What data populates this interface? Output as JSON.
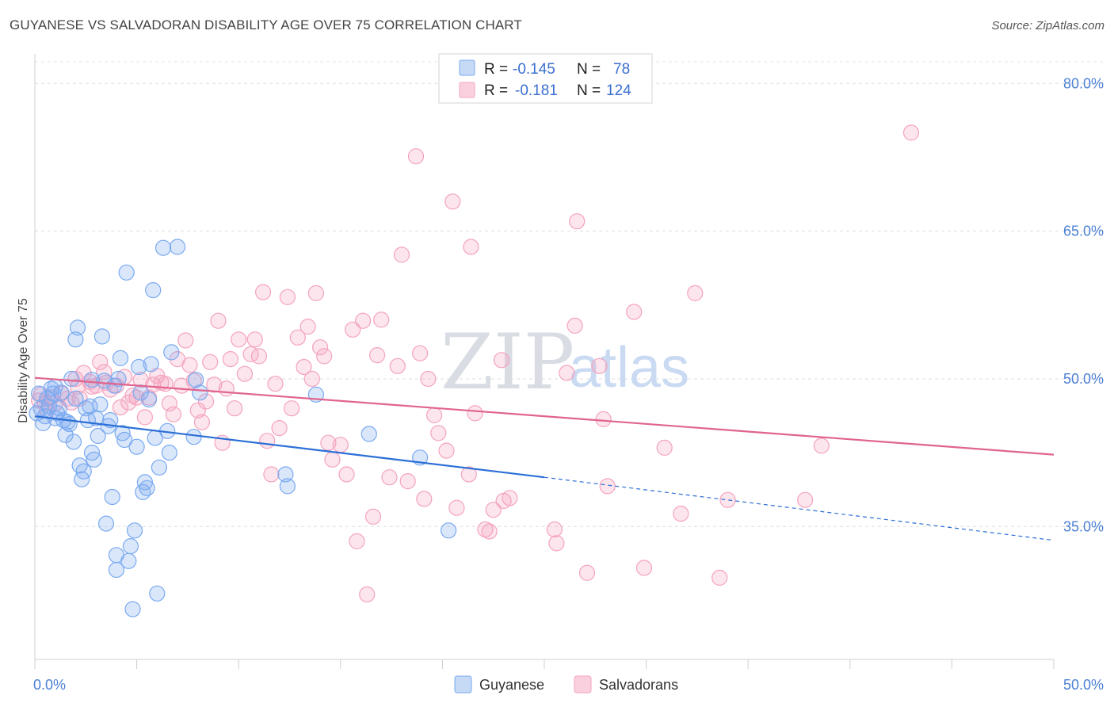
{
  "title": "GUYANESE VS SALVADORAN DISABILITY AGE OVER 75 CORRELATION CHART",
  "source": "Source: ZipAtlas.com",
  "watermark": {
    "zip": "ZIP",
    "atlas": "atlas"
  },
  "legend": {
    "rows": [
      {
        "r_label": "R =",
        "r_value": "-0.145",
        "n_label": "N =",
        "n_value": "78",
        "color": "#7aaaf0"
      },
      {
        "r_label": "R =",
        "r_value": "-0.181",
        "n_label": "N =",
        "n_value": "124",
        "color": "#f4a3be"
      }
    ]
  },
  "bottom_legend": [
    "Guyanese",
    "Salvadorans"
  ],
  "chart_data": {
    "type": "scatter",
    "title": "GUYANESE VS SALVADORAN DISABILITY AGE OVER 75 CORRELATION CHART",
    "xlabel": "",
    "ylabel": "Disability Age Over 75",
    "xlim": [
      0,
      50
    ],
    "ylim": [
      21.5,
      83
    ],
    "x_tick_labels": [
      "0.0%",
      "50.0%"
    ],
    "y_ticks": [
      35,
      50,
      65,
      80
    ],
    "y_tick_labels": [
      "35.0%",
      "50.0%",
      "65.0%",
      "80.0%"
    ],
    "grid": true,
    "legend_position": "top-center",
    "series": [
      {
        "name": "Guyanese",
        "color": "#7aaaf0",
        "line_color": "#2b6fd6",
        "trend": {
          "x0": 0,
          "y0": 46.2,
          "x1": 25,
          "y1": 40.0,
          "x_dashed_end": 50,
          "y_dashed_end": 33.6
        },
        "points": [
          [
            0.1,
            46.5
          ],
          [
            0.2,
            48.5
          ],
          [
            0.3,
            47.0
          ],
          [
            0.4,
            45.5
          ],
          [
            0.5,
            46.2
          ],
          [
            0.6,
            48.0
          ],
          [
            0.7,
            47.2
          ],
          [
            0.8,
            49.0
          ],
          [
            0.9,
            48.5
          ],
          [
            1.0,
            46.0
          ],
          [
            1.0,
            49.2
          ],
          [
            1.1,
            46.5
          ],
          [
            1.2,
            47.0
          ],
          [
            1.3,
            48.6
          ],
          [
            1.4,
            45.8
          ],
          [
            1.5,
            44.3
          ],
          [
            1.6,
            45.6
          ],
          [
            1.7,
            45.4
          ],
          [
            1.8,
            50.0
          ],
          [
            1.9,
            43.6
          ],
          [
            2.0,
            48.0
          ],
          [
            2.0,
            54.0
          ],
          [
            2.1,
            55.2
          ],
          [
            2.2,
            41.2
          ],
          [
            2.3,
            39.8
          ],
          [
            2.4,
            40.6
          ],
          [
            2.5,
            47.0
          ],
          [
            2.6,
            45.8
          ],
          [
            2.7,
            47.2
          ],
          [
            2.8,
            49.9
          ],
          [
            2.8,
            42.5
          ],
          [
            2.9,
            41.8
          ],
          [
            3.0,
            46.0
          ],
          [
            3.1,
            44.2
          ],
          [
            3.2,
            47.4
          ],
          [
            3.3,
            54.3
          ],
          [
            3.4,
            49.8
          ],
          [
            3.5,
            35.3
          ],
          [
            3.6,
            45.2
          ],
          [
            3.7,
            45.8
          ],
          [
            3.8,
            38.0
          ],
          [
            3.9,
            49.3
          ],
          [
            4.0,
            32.1
          ],
          [
            4.0,
            30.6
          ],
          [
            4.1,
            50.0
          ],
          [
            4.2,
            52.1
          ],
          [
            4.3,
            44.5
          ],
          [
            4.4,
            43.8
          ],
          [
            4.5,
            60.8
          ],
          [
            4.6,
            31.5
          ],
          [
            4.7,
            33.0
          ],
          [
            4.8,
            26.6
          ],
          [
            4.9,
            34.6
          ],
          [
            5.0,
            43.1
          ],
          [
            5.1,
            51.2
          ],
          [
            5.2,
            48.6
          ],
          [
            5.3,
            38.5
          ],
          [
            5.4,
            39.5
          ],
          [
            5.5,
            38.9
          ],
          [
            5.6,
            47.9
          ],
          [
            5.7,
            51.5
          ],
          [
            5.8,
            59.0
          ],
          [
            5.9,
            44.0
          ],
          [
            6.0,
            28.2
          ],
          [
            6.1,
            41.0
          ],
          [
            6.3,
            63.3
          ],
          [
            6.5,
            44.7
          ],
          [
            6.6,
            42.5
          ],
          [
            6.7,
            52.7
          ],
          [
            7.0,
            63.4
          ],
          [
            7.8,
            44.1
          ],
          [
            7.9,
            49.9
          ],
          [
            8.1,
            48.6
          ],
          [
            12.3,
            40.3
          ],
          [
            12.4,
            39.1
          ],
          [
            13.8,
            48.4
          ],
          [
            16.4,
            44.4
          ],
          [
            18.9,
            42.0
          ],
          [
            20.3,
            34.6
          ]
        ]
      },
      {
        "name": "Salvadorans",
        "color": "#f4a3be",
        "line_color": "#e0648e",
        "trend": {
          "x0": 0,
          "y0": 50.1,
          "x1": 50,
          "y1": 42.3
        },
        "points": [
          [
            0.2,
            47.8
          ],
          [
            0.3,
            48.4
          ],
          [
            0.5,
            47.5
          ],
          [
            0.6,
            46.8
          ],
          [
            0.8,
            48.1
          ],
          [
            1.0,
            47.5
          ],
          [
            1.3,
            48.5
          ],
          [
            1.6,
            48.0
          ],
          [
            1.8,
            47.6
          ],
          [
            2.0,
            50.0
          ],
          [
            2.1,
            49.2
          ],
          [
            2.2,
            48.0
          ],
          [
            2.4,
            50.6
          ],
          [
            2.7,
            49.7
          ],
          [
            2.8,
            49.2
          ],
          [
            3.0,
            49.3
          ],
          [
            3.2,
            51.7
          ],
          [
            3.4,
            50.7
          ],
          [
            3.5,
            49.6
          ],
          [
            3.7,
            48.9
          ],
          [
            4.0,
            49.3
          ],
          [
            4.2,
            47.1
          ],
          [
            4.4,
            50.2
          ],
          [
            4.6,
            47.6
          ],
          [
            4.8,
            48.3
          ],
          [
            5.0,
            48.1
          ],
          [
            5.2,
            49.9
          ],
          [
            5.4,
            46.1
          ],
          [
            5.6,
            48.1
          ],
          [
            5.8,
            49.4
          ],
          [
            6.0,
            50.3
          ],
          [
            6.2,
            49.6
          ],
          [
            6.4,
            49.5
          ],
          [
            6.6,
            47.5
          ],
          [
            6.8,
            46.4
          ],
          [
            7.0,
            52.0
          ],
          [
            7.2,
            49.3
          ],
          [
            7.4,
            53.9
          ],
          [
            7.6,
            51.4
          ],
          [
            7.8,
            49.8
          ],
          [
            8.0,
            46.8
          ],
          [
            8.2,
            45.6
          ],
          [
            8.4,
            47.7
          ],
          [
            8.6,
            51.7
          ],
          [
            8.8,
            49.4
          ],
          [
            9.0,
            55.9
          ],
          [
            9.2,
            43.5
          ],
          [
            9.4,
            49.0
          ],
          [
            9.6,
            52.0
          ],
          [
            9.8,
            47.0
          ],
          [
            10.0,
            54.0
          ],
          [
            10.3,
            50.5
          ],
          [
            10.6,
            52.5
          ],
          [
            10.8,
            54.0
          ],
          [
            11.0,
            52.3
          ],
          [
            11.2,
            58.8
          ],
          [
            11.4,
            43.7
          ],
          [
            11.6,
            40.3
          ],
          [
            11.8,
            49.5
          ],
          [
            12.0,
            45.0
          ],
          [
            12.4,
            58.3
          ],
          [
            12.6,
            47.0
          ],
          [
            12.9,
            54.2
          ],
          [
            13.2,
            51.2
          ],
          [
            13.4,
            55.3
          ],
          [
            13.6,
            50.0
          ],
          [
            13.8,
            58.7
          ],
          [
            14.0,
            53.2
          ],
          [
            14.2,
            52.3
          ],
          [
            14.4,
            43.5
          ],
          [
            14.6,
            41.8
          ],
          [
            15.0,
            43.3
          ],
          [
            15.3,
            40.3
          ],
          [
            15.6,
            55.0
          ],
          [
            15.8,
            33.5
          ],
          [
            16.1,
            55.9
          ],
          [
            16.3,
            28.1
          ],
          [
            16.6,
            36.0
          ],
          [
            16.8,
            52.4
          ],
          [
            17.0,
            56.0
          ],
          [
            17.4,
            40.0
          ],
          [
            17.8,
            51.3
          ],
          [
            18.0,
            62.6
          ],
          [
            18.3,
            39.6
          ],
          [
            18.7,
            72.6
          ],
          [
            18.9,
            52.6
          ],
          [
            19.1,
            37.8
          ],
          [
            19.3,
            50.0
          ],
          [
            19.6,
            46.3
          ],
          [
            19.8,
            44.5
          ],
          [
            20.2,
            42.7
          ],
          [
            20.5,
            68.0
          ],
          [
            20.7,
            36.9
          ],
          [
            21.3,
            40.3
          ],
          [
            21.4,
            63.4
          ],
          [
            21.6,
            46.5
          ],
          [
            22.1,
            34.7
          ],
          [
            22.3,
            34.5
          ],
          [
            22.5,
            36.7
          ],
          [
            22.9,
            51.9
          ],
          [
            23.0,
            37.6
          ],
          [
            23.3,
            37.9
          ],
          [
            25.5,
            34.7
          ],
          [
            25.6,
            33.3
          ],
          [
            26.1,
            50.6
          ],
          [
            26.5,
            55.4
          ],
          [
            26.6,
            66.0
          ],
          [
            27.1,
            30.3
          ],
          [
            27.7,
            51.3
          ],
          [
            27.9,
            45.9
          ],
          [
            28.1,
            39.1
          ],
          [
            29.4,
            56.8
          ],
          [
            29.9,
            30.8
          ],
          [
            30.9,
            43.0
          ],
          [
            31.7,
            36.3
          ],
          [
            32.4,
            58.7
          ],
          [
            33.6,
            29.8
          ],
          [
            34.0,
            37.7
          ],
          [
            37.8,
            37.7
          ],
          [
            38.6,
            43.2
          ],
          [
            43.0,
            75.0
          ]
        ]
      }
    ]
  }
}
